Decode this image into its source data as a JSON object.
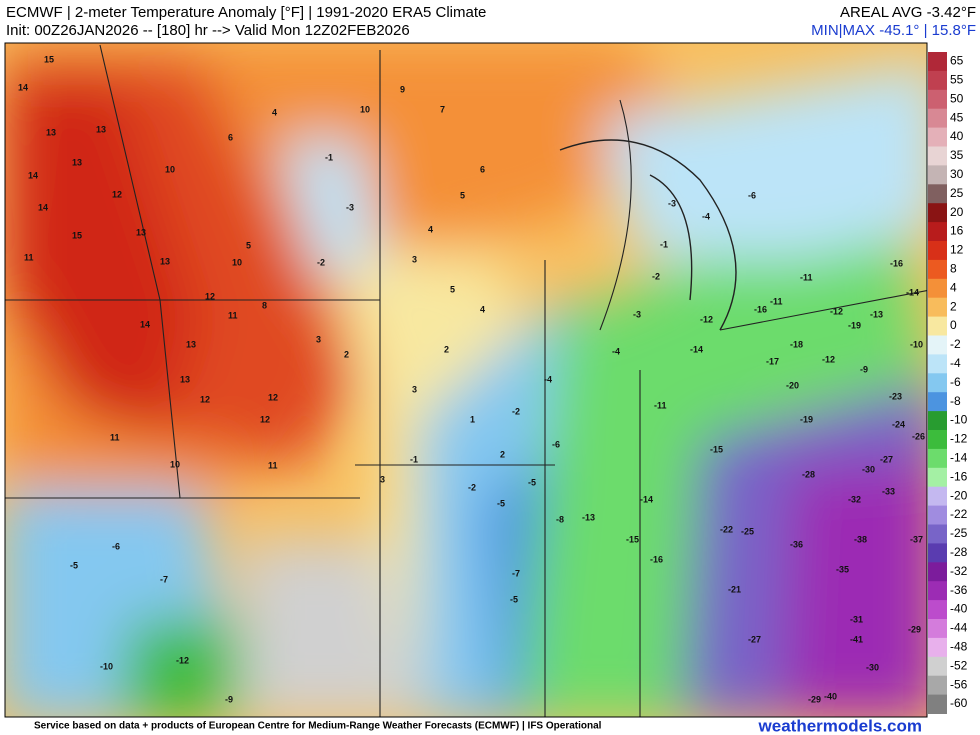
{
  "header": {
    "title": "ECMWF | 2-meter Temperature Anomaly [°F] | 1991-2020 ERA5 Climate",
    "init": "Init: 00Z26JAN2026 -- [180] hr --> Valid Mon 12Z02FEB2026",
    "areal_avg": "AREAL AVG -3.42°F",
    "min_max": "MIN|MAX -45.1° | 15.8°F"
  },
  "colorbar": {
    "ticks": [
      65,
      55,
      50,
      45,
      40,
      35,
      30,
      25,
      20,
      16,
      12,
      8,
      4,
      2,
      0,
      -2,
      -4,
      -6,
      -8,
      -10,
      -12,
      -14,
      -16,
      -20,
      -22,
      -25,
      -28,
      -32,
      -36,
      -40,
      -44,
      -48,
      -52,
      -56,
      -60
    ],
    "colors": [
      "#b02838",
      "#c04050",
      "#cc6070",
      "#d88894",
      "#e4b0b8",
      "#e8d4d4",
      "#c4b4b4",
      "#806060",
      "#8a1414",
      "#b81c1c",
      "#d83018",
      "#ec5a20",
      "#f49038",
      "#f8bc5c",
      "#f8e8a0",
      "#e4f4f8",
      "#bce4f8",
      "#84c8f0",
      "#4c94e0",
      "#289c30",
      "#3cbc3c",
      "#6cdc6c",
      "#a4f0a4",
      "#c4b8f0",
      "#a08ce0",
      "#7864c8",
      "#5a3cb0",
      "#7c1c9c",
      "#9c2cb4",
      "#bc4ccc",
      "#d47cdc",
      "#e8b0ec",
      "#d0d0d0",
      "#a8a8a8",
      "#808080"
    ]
  },
  "map_labels": {
    "values": [
      15,
      14,
      13,
      13,
      14,
      13,
      14,
      15,
      12,
      11,
      13,
      13,
      12,
      11,
      10,
      14,
      13,
      12,
      12,
      11,
      13,
      12,
      10,
      11,
      10,
      8,
      6,
      5,
      4,
      3,
      2,
      3,
      4,
      5,
      6,
      7,
      9,
      10,
      5,
      4,
      3,
      2,
      1,
      2,
      3,
      -1,
      -3,
      -2,
      -1,
      -2,
      -5,
      -4,
      -2,
      -5,
      -6,
      -8,
      -7,
      -6,
      -5,
      -7,
      -10,
      -12,
      -9,
      -11,
      -14,
      -15,
      -13,
      -16,
      -14,
      -12,
      -11,
      -15,
      -17,
      -18,
      -16,
      -19,
      -20,
      -22,
      -21,
      -25,
      -27,
      -28,
      -29,
      -30,
      -32,
      -33,
      -31,
      -35,
      -36,
      -37,
      -38,
      -40,
      -41,
      -30,
      -29,
      -27,
      -26,
      -24,
      -23,
      -19,
      -16,
      -14,
      -13,
      -12,
      -9,
      -10,
      -12,
      -11,
      -4,
      -3,
      -2,
      -6,
      -3,
      -1,
      -4,
      -5
    ]
  },
  "footer": {
    "credit": "Service based on data + products of European Centre for Medium-Range Weather Forecasts (ECMWF) | IFS Operational",
    "site": "weathermodels.com"
  }
}
